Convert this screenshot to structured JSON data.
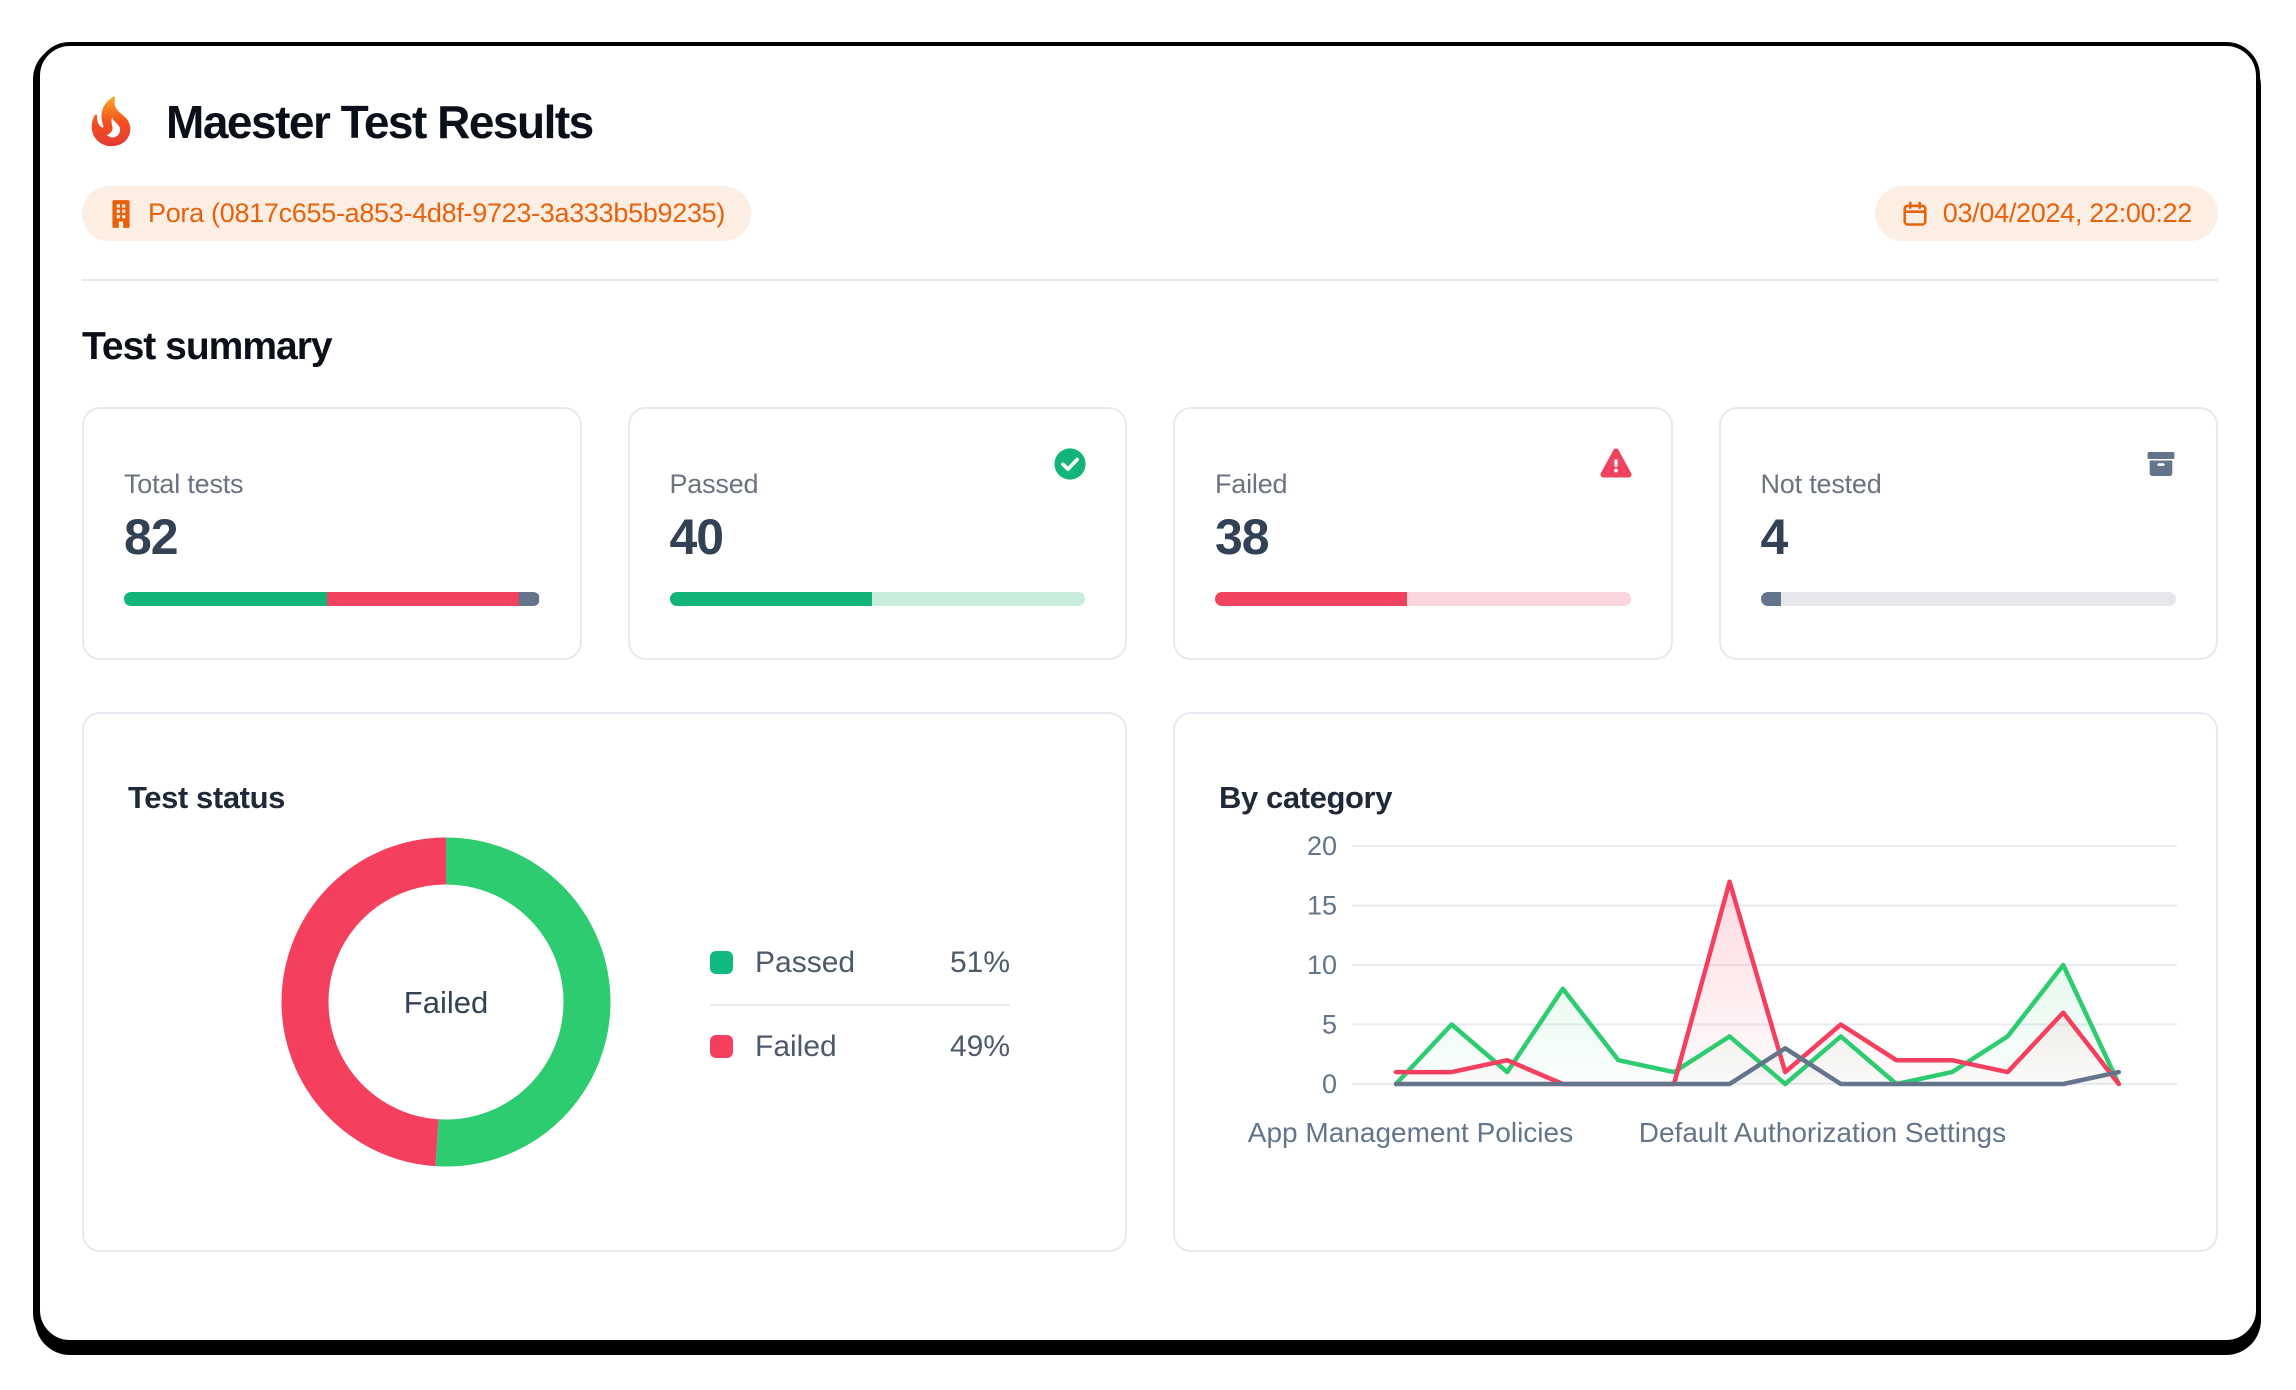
{
  "header": {
    "title": "Maester Test Results",
    "tenant_badge": "Pora (0817c655-a853-4d8f-9723-3a333b5b9235)",
    "timestamp_badge": "03/04/2024, 22:00:22"
  },
  "summary": {
    "heading": "Test summary",
    "cards": [
      {
        "label": "Total tests",
        "value": "82",
        "icon": "none",
        "track": "#e5e7eb",
        "segments": [
          {
            "color": "#12b477",
            "pct": 48.8
          },
          {
            "color": "#f0435f",
            "pct": 46.3
          },
          {
            "color": "#64748b",
            "pct": 4.9
          }
        ]
      },
      {
        "label": "Passed",
        "value": "40",
        "icon": "check-circle",
        "track": "#c9ecdc",
        "segments": [
          {
            "color": "#12b477",
            "pct": 48.8
          }
        ]
      },
      {
        "label": "Failed",
        "value": "38",
        "icon": "warning-triangle",
        "track": "#fbd5dc",
        "segments": [
          {
            "color": "#f0435f",
            "pct": 46.3
          }
        ]
      },
      {
        "label": "Not tested",
        "value": "4",
        "icon": "archive",
        "track": "#e5e7eb",
        "segments": [
          {
            "color": "#64748b",
            "pct": 4.9
          }
        ]
      }
    ]
  },
  "test_status": {
    "title": "Test status",
    "center_label": "Failed",
    "legend": [
      {
        "label": "Passed",
        "value": "51%",
        "color": "#10b981"
      },
      {
        "label": "Failed",
        "value": "49%",
        "color": "#f43f5e"
      }
    ]
  },
  "by_category": {
    "title": "By category"
  },
  "chart_data": [
    {
      "type": "pie",
      "title": "Test status",
      "labels": [
        "Passed",
        "Failed"
      ],
      "values": [
        51,
        49
      ],
      "colors": [
        "#2ecc71",
        "#f43f5e"
      ],
      "donut": true,
      "center_label": "Failed",
      "legend_position": "right"
    },
    {
      "type": "line",
      "title": "By category",
      "x": [
        1,
        2,
        3,
        4,
        5,
        6,
        7,
        8,
        9,
        10,
        11,
        12,
        13,
        14
      ],
      "x_labels": [
        {
          "text": "App Management Policies",
          "pos": 0.02
        },
        {
          "text": "Default Authorization Settings",
          "pos": 0.59
        }
      ],
      "series": [
        {
          "name": "Passed",
          "color": "#2ecc71",
          "values": [
            0,
            5,
            1,
            8,
            2,
            1,
            4,
            0,
            4,
            0,
            1,
            4,
            10,
            0
          ]
        },
        {
          "name": "Failed",
          "color": "#f43f5e",
          "values": [
            1,
            1,
            2,
            0,
            0,
            0,
            17,
            1,
            5,
            2,
            2,
            1,
            6,
            0
          ]
        },
        {
          "name": "Not tested",
          "color": "#64748b",
          "values": [
            0,
            0,
            0,
            0,
            0,
            0,
            0,
            3,
            0,
            0,
            0,
            0,
            0,
            1
          ]
        }
      ],
      "ylim": [
        0,
        20
      ],
      "yticks": [
        0,
        5,
        10,
        15,
        20
      ],
      "grid": true
    }
  ],
  "colors": {
    "green_bright": "#2ecc71",
    "green_emerald": "#12b477",
    "red_rose": "#f43f5e",
    "slate": "#64748b",
    "value_text": "#334155",
    "badge_bg": "#fdeee3",
    "badge_text": "#e8620e"
  }
}
